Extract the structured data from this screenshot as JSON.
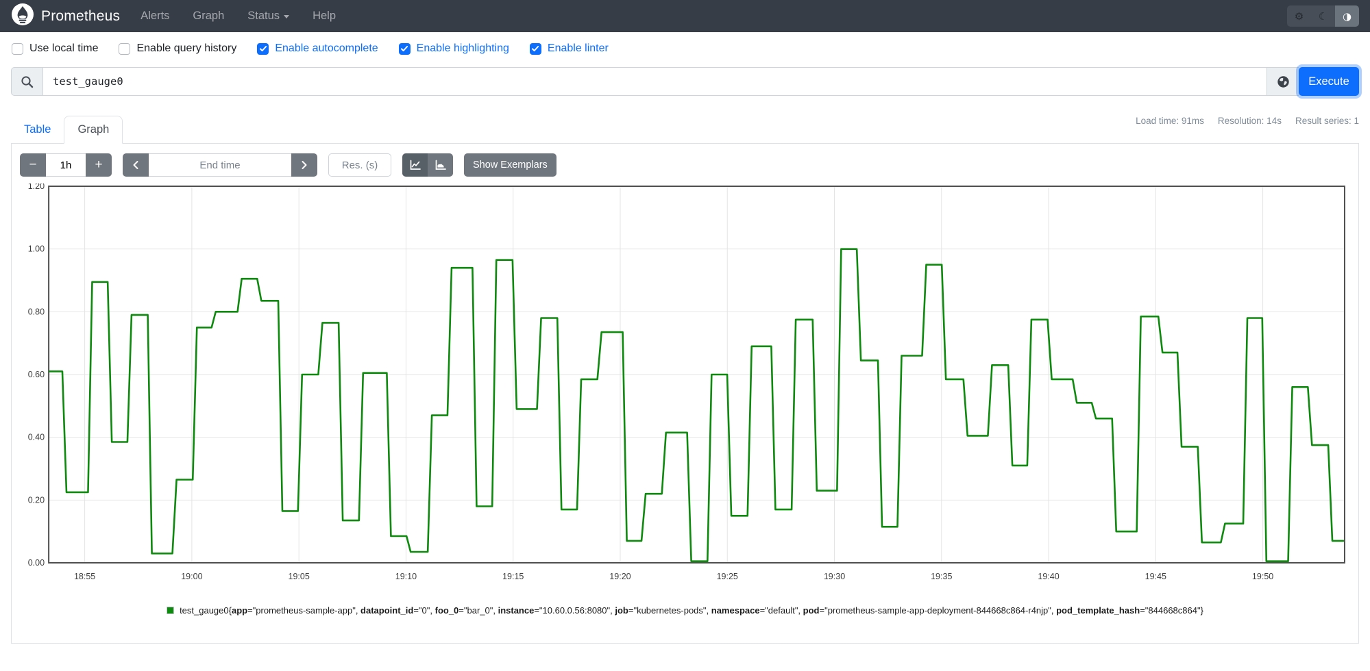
{
  "navbar": {
    "brand": "Prometheus",
    "links": [
      {
        "label": "Alerts",
        "caret": false
      },
      {
        "label": "Graph",
        "caret": false
      },
      {
        "label": "Status",
        "caret": true
      },
      {
        "label": "Help",
        "caret": false
      }
    ],
    "theme_toggle": [
      {
        "name": "gear-icon",
        "glyph": "⚙",
        "active": false
      },
      {
        "name": "moon-icon",
        "glyph": "☾",
        "active": false
      },
      {
        "name": "contrast-icon",
        "glyph": "◑",
        "active": true
      }
    ]
  },
  "options": [
    {
      "label": "Use local time",
      "checked": false
    },
    {
      "label": "Enable query history",
      "checked": false
    },
    {
      "label": "Enable autocomplete",
      "checked": true
    },
    {
      "label": "Enable highlighting",
      "checked": true
    },
    {
      "label": "Enable linter",
      "checked": true
    }
  ],
  "query": {
    "value": "test_gauge0",
    "execute_label": "Execute",
    "search_icon": "magnifier-icon",
    "globe_icon": "globe-icon"
  },
  "result_tabs": {
    "table_label": "Table",
    "graph_label": "Graph",
    "stats": [
      "Load time: 91ms",
      "Resolution: 14s",
      "Result series: 1"
    ]
  },
  "graph_controls": {
    "minus": "−",
    "duration": "1h",
    "plus": "+",
    "end_time_placeholder": "End time",
    "res_placeholder": "Res. (s)",
    "show_exemplars": "Show Exemplars",
    "chart_type_icons": [
      "line-chart-icon",
      "stacked-chart-icon"
    ],
    "active_chart_type": "line"
  },
  "legend": {
    "metric": "test_gauge0",
    "labels": [
      [
        "app",
        "prometheus-sample-app"
      ],
      [
        "datapoint_id",
        "0"
      ],
      [
        "foo_0",
        "bar_0"
      ],
      [
        "instance",
        "10.60.0.56:8080"
      ],
      [
        "job",
        "kubernetes-pods"
      ],
      [
        "namespace",
        "default"
      ],
      [
        "pod",
        "prometheus-sample-app-deployment-844668c864-r4njp"
      ],
      [
        "pod_template_hash",
        "844668c864"
      ]
    ]
  },
  "chart_data": {
    "type": "line",
    "line_style": "step",
    "series_name": "test_gauge0",
    "series_color": "#0e8a0e",
    "x_axis": {
      "unit": "time",
      "start_offset_min": 0,
      "end_offset_min": 60.5,
      "ticks": [
        {
          "t": 1.68,
          "label": "18:55"
        },
        {
          "t": 6.68,
          "label": "19:00"
        },
        {
          "t": 11.68,
          "label": "19:05"
        },
        {
          "t": 16.68,
          "label": "19:10"
        },
        {
          "t": 21.68,
          "label": "19:15"
        },
        {
          "t": 26.68,
          "label": "19:20"
        },
        {
          "t": 31.68,
          "label": "19:25"
        },
        {
          "t": 36.68,
          "label": "19:30"
        },
        {
          "t": 41.68,
          "label": "19:35"
        },
        {
          "t": 46.68,
          "label": "19:40"
        },
        {
          "t": 51.68,
          "label": "19:45"
        },
        {
          "t": 56.68,
          "label": "19:50"
        }
      ]
    },
    "y_axis": {
      "min": 0,
      "max": 1.2,
      "tick_step": 0.2,
      "tick_labels": [
        "0.00",
        "0.20",
        "0.40",
        "0.60",
        "0.80",
        "1.00",
        "1.20"
      ]
    },
    "grid": true,
    "steps": [
      [
        0.0,
        0.61
      ],
      [
        0.73,
        0.225
      ],
      [
        1.93,
        0.895
      ],
      [
        2.85,
        0.385
      ],
      [
        3.77,
        0.79
      ],
      [
        4.72,
        0.03
      ],
      [
        5.87,
        0.265
      ],
      [
        6.82,
        0.75
      ],
      [
        7.7,
        0.8
      ],
      [
        8.91,
        0.905
      ],
      [
        9.83,
        0.835
      ],
      [
        10.81,
        0.165
      ],
      [
        11.73,
        0.6
      ],
      [
        12.68,
        0.765
      ],
      [
        13.63,
        0.135
      ],
      [
        14.58,
        0.605
      ],
      [
        15.88,
        0.085
      ],
      [
        16.8,
        0.035
      ],
      [
        17.79,
        0.47
      ],
      [
        18.71,
        0.94
      ],
      [
        19.88,
        0.18
      ],
      [
        20.8,
        0.965
      ],
      [
        21.75,
        0.49
      ],
      [
        22.89,
        0.78
      ],
      [
        23.84,
        0.17
      ],
      [
        24.76,
        0.585
      ],
      [
        25.71,
        0.735
      ],
      [
        26.89,
        0.07
      ],
      [
        27.77,
        0.22
      ],
      [
        28.72,
        0.415
      ],
      [
        29.9,
        0.005
      ],
      [
        30.85,
        0.6
      ],
      [
        31.77,
        0.15
      ],
      [
        32.72,
        0.69
      ],
      [
        33.83,
        0.17
      ],
      [
        34.78,
        0.775
      ],
      [
        35.76,
        0.23
      ],
      [
        36.9,
        1.0
      ],
      [
        37.82,
        0.645
      ],
      [
        38.81,
        0.115
      ],
      [
        39.72,
        0.66
      ],
      [
        40.87,
        0.95
      ],
      [
        41.79,
        0.585
      ],
      [
        42.8,
        0.405
      ],
      [
        43.94,
        0.63
      ],
      [
        44.89,
        0.31
      ],
      [
        45.78,
        0.775
      ],
      [
        46.73,
        0.585
      ],
      [
        47.9,
        0.51
      ],
      [
        48.79,
        0.46
      ],
      [
        49.74,
        0.1
      ],
      [
        50.89,
        0.785
      ],
      [
        51.9,
        0.67
      ],
      [
        52.79,
        0.37
      ],
      [
        53.74,
        0.065
      ],
      [
        54.82,
        0.125
      ],
      [
        55.86,
        0.78
      ],
      [
        56.75,
        0.005
      ],
      [
        57.96,
        0.56
      ],
      [
        58.88,
        0.375
      ],
      [
        59.83,
        0.07
      ]
    ]
  }
}
